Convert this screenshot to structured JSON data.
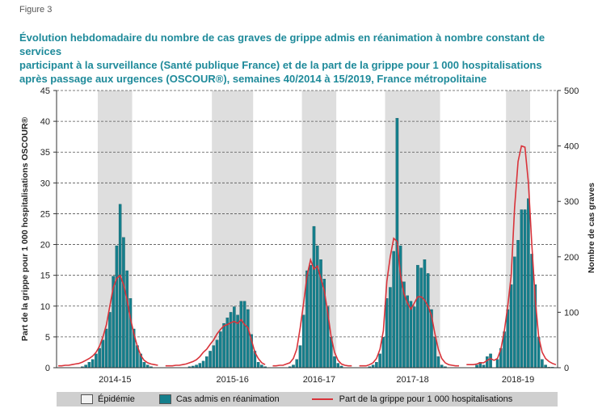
{
  "figure_label": "Figure 3",
  "title_lines": [
    "Évolution hebdomadaire du nombre de cas graves de grippe admis en réanimation à nombre constant de services",
    "participant à la surveillance (Santé publique France) et de la part de la grippe pour 1 000 hospitalisations",
    "après passage aux urgences (OSCOUR®), semaines 40/2014 à 15/2019, France métropolitaine"
  ],
  "colors": {
    "bars": "#157f8c",
    "line": "#d9333a",
    "epidemic": "#dedede",
    "grid": "#555555",
    "title": "#1e8a9a"
  },
  "chart_data": {
    "type": "bar+line",
    "left_axis": {
      "label": "Part de la grippe pour 1 000 hospitalisations OSCOUR®",
      "min": 0,
      "max": 45,
      "ticks": [
        0,
        5,
        10,
        15,
        20,
        25,
        30,
        35,
        40,
        45
      ]
    },
    "right_axis": {
      "label": "Nombre de cas graves",
      "min": 0,
      "max": 500,
      "ticks": [
        0,
        100,
        200,
        300,
        400,
        500
      ]
    },
    "grid": true,
    "legend_position": "bottom",
    "legend": {
      "epidemic": "Épidémie",
      "bars": "Cas admis en réanimation",
      "line": "Part de la grippe pour 1 000 hospitalisations"
    },
    "seasons": [
      {
        "label": "2014-15",
        "epidemic": [
          12,
          22
        ],
        "cases": [
          0,
          0,
          0,
          0,
          0,
          0,
          0,
          2,
          5,
          10,
          15,
          25,
          35,
          50,
          70,
          100,
          165,
          220,
          295,
          235,
          175,
          125,
          70,
          40,
          25,
          10,
          5,
          2,
          0,
          0
        ],
        "share": [
          0.3,
          0.3,
          0.4,
          0.4,
          0.5,
          0.6,
          0.7,
          0.9,
          1.2,
          1.5,
          1.9,
          2.5,
          3.5,
          5.0,
          7.0,
          10.0,
          13.0,
          14.5,
          15.0,
          13.5,
          11.0,
          8.0,
          5.5,
          3.5,
          2.0,
          1.2,
          0.8,
          0.6,
          0.5,
          0.4
        ]
      },
      {
        "label": "2015-16",
        "epidemic": [
          14,
          26
        ],
        "cases": [
          0,
          0,
          0,
          0,
          0,
          0,
          0,
          2,
          3,
          5,
          8,
          12,
          20,
          30,
          40,
          50,
          65,
          80,
          90,
          100,
          110,
          95,
          120,
          120,
          105,
          60,
          30,
          10,
          5,
          2
        ],
        "share": [
          0.3,
          0.3,
          0.3,
          0.4,
          0.4,
          0.5,
          0.6,
          0.8,
          1.0,
          1.3,
          1.8,
          2.5,
          3.0,
          3.8,
          4.5,
          5.5,
          6.2,
          6.8,
          7.0,
          7.3,
          7.5,
          7.2,
          7.8,
          7.0,
          6.5,
          4.5,
          2.5,
          1.5,
          0.8,
          0.5
        ]
      },
      {
        "label": "2016-17",
        "epidemic": [
          9,
          19
        ],
        "cases": [
          0,
          0,
          0,
          0,
          0,
          2,
          5,
          15,
          40,
          95,
          175,
          185,
          255,
          220,
          195,
          160,
          110,
          55,
          20,
          8,
          3,
          0,
          0,
          0
        ],
        "share": [
          0.3,
          0.3,
          0.4,
          0.4,
          0.6,
          0.8,
          1.5,
          3.0,
          6.5,
          10.5,
          15.0,
          17.5,
          16.0,
          16.5,
          14.5,
          12.5,
          9.0,
          5.0,
          2.5,
          1.2,
          0.6,
          0.4,
          0.3,
          0.3
        ]
      },
      {
        "label": "2017-18",
        "epidemic": [
          8,
          24
        ],
        "cases": [
          0,
          0,
          0,
          2,
          5,
          10,
          25,
          55,
          125,
          145,
          210,
          450,
          220,
          155,
          130,
          120,
          110,
          185,
          180,
          195,
          170,
          105,
          55,
          20,
          5,
          2,
          0,
          0,
          0,
          0
        ],
        "share": [
          0.3,
          0.3,
          0.3,
          0.5,
          0.8,
          1.5,
          3.0,
          6.0,
          14.0,
          18.0,
          21.0,
          20.5,
          15.0,
          12.0,
          10.5,
          9.5,
          10.5,
          11.5,
          11.5,
          11.0,
          10.0,
          8.5,
          5.5,
          3.0,
          1.5,
          0.8,
          0.5,
          0.4,
          0.3,
          0.3
        ]
      },
      {
        "label": "2018-19",
        "epidemic": [
          12,
          19
        ],
        "cases": [
          0,
          0,
          0,
          5,
          10,
          5,
          20,
          25,
          0,
          15,
          35,
          65,
          105,
          150,
          200,
          230,
          285,
          285,
          305,
          205,
          150,
          55,
          15,
          5,
          1,
          1,
          0
        ],
        "share": [
          0.5,
          0.5,
          0.5,
          0.6,
          0.8,
          0.8,
          1.2,
          1.5,
          1.2,
          1.5,
          3.0,
          6.0,
          10.0,
          15.0,
          26.0,
          33.5,
          36.0,
          35.8,
          30.0,
          20.0,
          11.0,
          5.0,
          2.5,
          1.5,
          1.0,
          0.7,
          0.5
        ]
      }
    ]
  }
}
